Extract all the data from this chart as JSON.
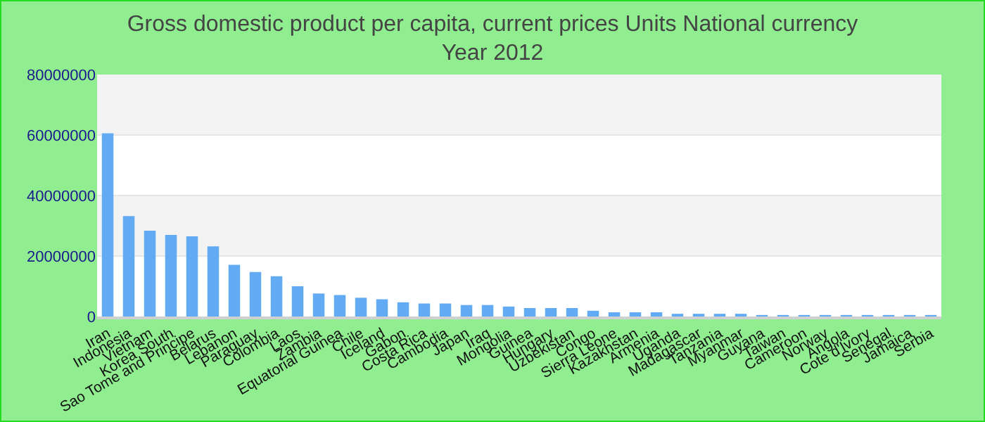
{
  "chart_data": {
    "type": "bar",
    "title": "Gross domestic product per capita, current prices Units National currency",
    "subtitle": "Year 2012",
    "categories": [
      "Iran",
      "Indonesia",
      "Vietnam",
      "Korea South",
      "Sao Tome and Principe",
      "Belarus",
      "Lebanon",
      "Paraguay",
      "Colombia",
      "Laos",
      "Zambia",
      "Equatorial Guinea",
      "Chile",
      "Iceland",
      "Gabon",
      "Costa Rica",
      "Cambodia",
      "Japan",
      "Iraq",
      "Mongolia",
      "Guinea",
      "Hungary",
      "Uzbekistan",
      "Congo",
      "Sierra Leone",
      "Kazakhstan",
      "Armenia",
      "Uganda",
      "Madagascar",
      "Tanzania",
      "Myanmar",
      "Guyana",
      "Taiwan",
      "Cameroon",
      "Norway",
      "Angola",
      "Cote d'Ivory",
      "Senegal",
      "Jamaica",
      "Serbia"
    ],
    "values": [
      60600000,
      33200000,
      28400000,
      27000000,
      26500000,
      23200000,
      17100000,
      14700000,
      13300000,
      10000000,
      7600000,
      7100000,
      6200000,
      5700000,
      4700000,
      4300000,
      4300000,
      3800000,
      3800000,
      3300000,
      2800000,
      2800000,
      2800000,
      1900000,
      1400000,
      1400000,
      1400000,
      900000,
      900000,
      900000,
      900000,
      500000,
      500000,
      500000,
      500000,
      500000,
      500000,
      500000,
      500000,
      500000
    ],
    "color": "#63aaf5",
    "ylim": [
      0,
      80000000
    ],
    "yticks": [
      0,
      20000000,
      40000000,
      60000000,
      80000000
    ],
    "grid": "y"
  }
}
